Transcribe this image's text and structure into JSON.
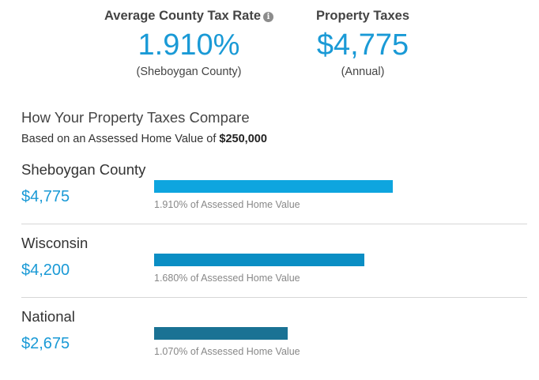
{
  "summary": {
    "rate_label": "Average County Tax Rate",
    "rate_value": "1.910%",
    "rate_sub": "(Sheboygan County)",
    "taxes_label": "Property Taxes",
    "taxes_value": "$4,775",
    "taxes_sub": "(Annual)"
  },
  "compare": {
    "title": "How Your Property Taxes Compare",
    "subtitle_prefix": "Based on an Assessed Home Value of ",
    "subtitle_value": "$250,000"
  },
  "colors": {
    "accent": "#1a9ad6",
    "bar_county": "#0ea5df",
    "bar_state": "#0b8ec4",
    "bar_national": "#1a7294"
  },
  "chart_data": {
    "type": "bar",
    "categories": [
      "Sheboygan County",
      "Wisconsin",
      "National"
    ],
    "values": [
      4775,
      4200,
      2675
    ],
    "rates_percent": [
      1.91,
      1.68,
      1.07
    ],
    "xlim": [
      0,
      6800
    ]
  },
  "rows": [
    {
      "name": "Sheboygan County",
      "amount": "$4,775",
      "caption": "1.910% of Assessed Home Value",
      "value": 4775,
      "color": "#0ea5df"
    },
    {
      "name": "Wisconsin",
      "amount": "$4,200",
      "caption": "1.680% of Assessed Home Value",
      "value": 4200,
      "color": "#0b8ec4"
    },
    {
      "name": "National",
      "amount": "$2,675",
      "caption": "1.070% of Assessed Home Value",
      "value": 2675,
      "color": "#1a7294"
    }
  ]
}
